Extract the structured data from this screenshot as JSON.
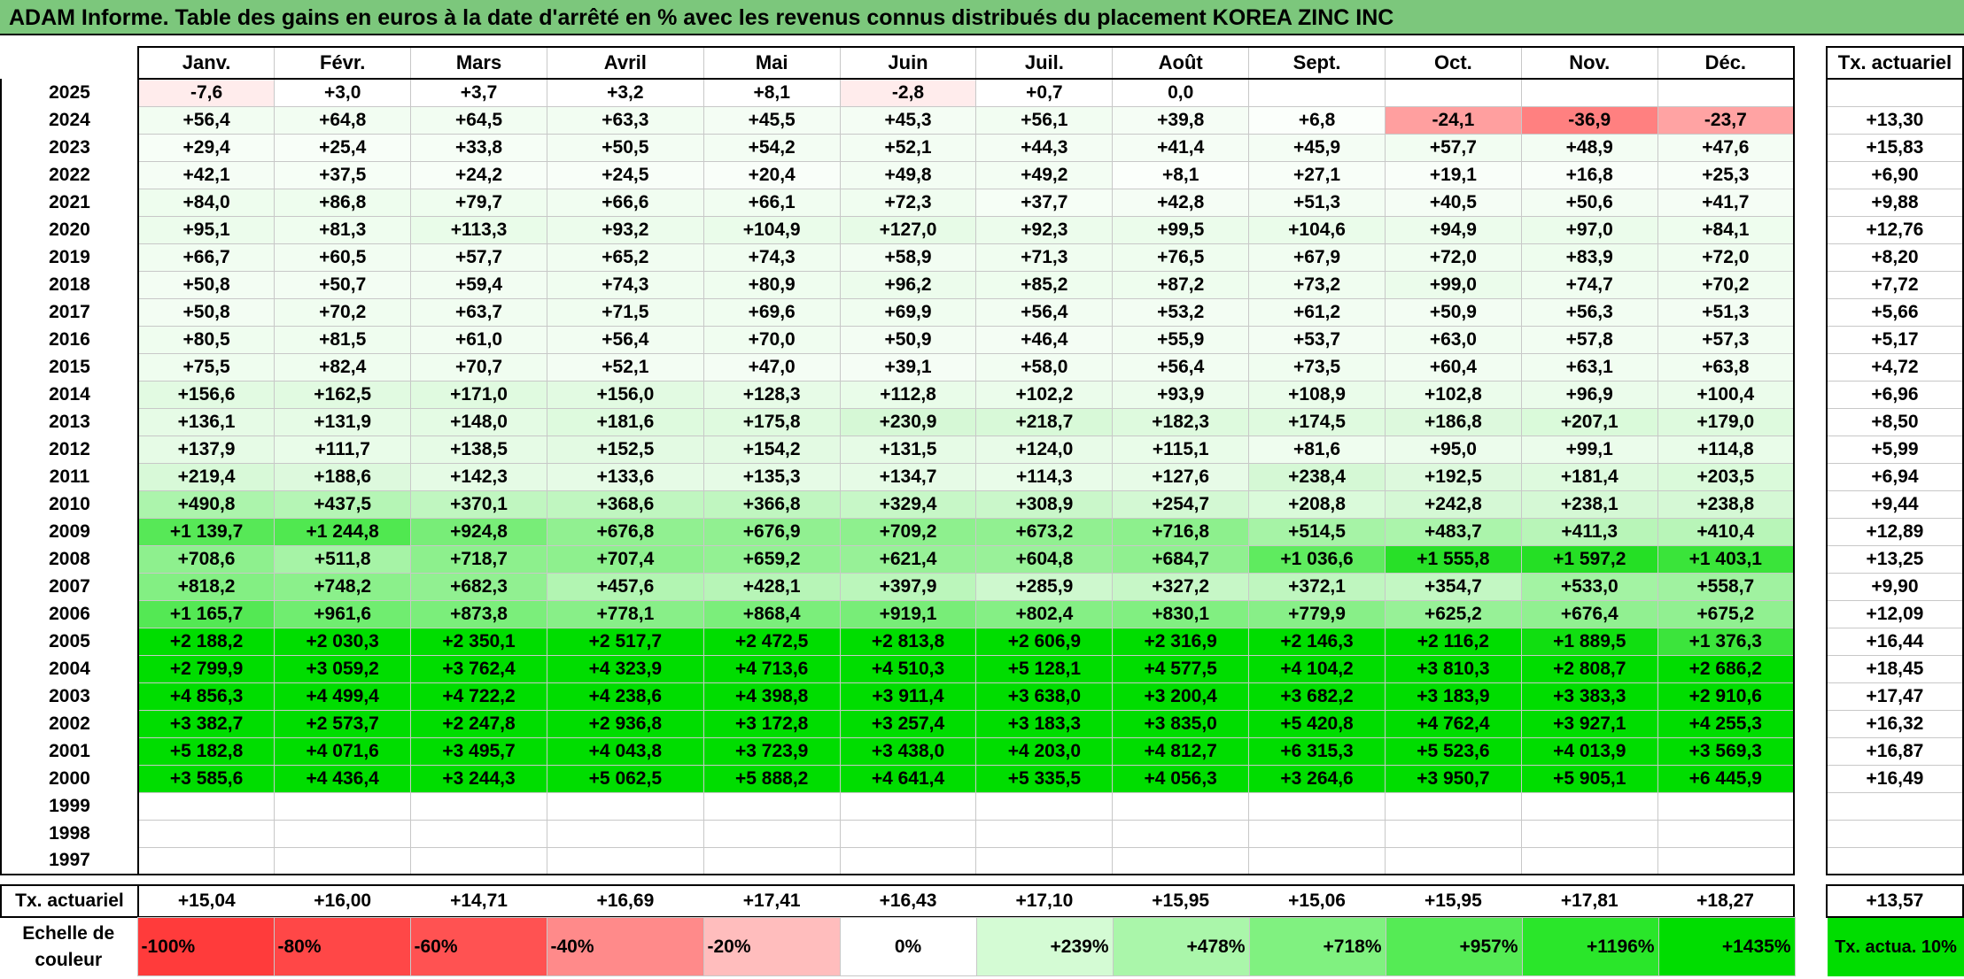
{
  "title": "ADAM Informe. Table des gains en euros à la date d'arrêté en % avec les revenus connus distribués du placement KOREA ZINC INC",
  "months": [
    "Janv.",
    "Févr.",
    "Mars",
    "Avril",
    "Mai",
    "Juin",
    "Juil.",
    "Août",
    "Sept.",
    "Oct.",
    "Nov.",
    "Déc."
  ],
  "actuarial_header": "Tx. actuariel",
  "rows": [
    {
      "year": "2025",
      "values": [
        "-7,6",
        "+3,0",
        "+3,7",
        "+3,2",
        "+8,1",
        "-2,8",
        "+0,7",
        "0,0",
        "",
        "",
        "",
        ""
      ],
      "colors": [
        "#ffecec",
        "#ffffff",
        "#ffffff",
        "#ffffff",
        "#ffffff",
        "#ffecec",
        "#ffffff",
        "#ffffff",
        "#ffffff",
        "#ffffff",
        "#ffffff",
        "#ffffff"
      ],
      "rate": ""
    },
    {
      "year": "2024",
      "values": [
        "+56,4",
        "+64,8",
        "+64,5",
        "+63,3",
        "+45,5",
        "+45,3",
        "+56,1",
        "+39,8",
        "+6,8",
        "-24,1",
        "-36,9",
        "-23,7"
      ],
      "colors": [
        "#f2fdf2",
        "#f2fdf2",
        "#f2fdf2",
        "#f2fdf2",
        "#f4fdf4",
        "#f4fdf4",
        "#f2fdf2",
        "#f5fdf5",
        "#fbfffb",
        "#ff9f9f",
        "#ff8080",
        "#ffa3a3"
      ],
      "rate": "+13,30"
    },
    {
      "year": "2023",
      "values": [
        "+29,4",
        "+25,4",
        "+33,8",
        "+50,5",
        "+54,2",
        "+52,1",
        "+44,3",
        "+41,4",
        "+45,9",
        "+57,7",
        "+48,9",
        "+47,6"
      ],
      "colors": [
        "#f7fef7",
        "#f8fef8",
        "#f6fef6",
        "#f3fdf3",
        "#f3fdf3",
        "#f3fdf3",
        "#f4fdf4",
        "#f5fdf5",
        "#f4fdf4",
        "#f2fdf2",
        "#f3fdf3",
        "#f4fdf4"
      ],
      "rate": "+15,83"
    },
    {
      "year": "2022",
      "values": [
        "+42,1",
        "+37,5",
        "+24,2",
        "+24,5",
        "+20,4",
        "+49,8",
        "+49,2",
        "+8,1",
        "+27,1",
        "+19,1",
        "+16,8",
        "+25,3"
      ],
      "colors": [
        "#f5fdf5",
        "#f6fef6",
        "#f8fef8",
        "#f8fef8",
        "#f9fef9",
        "#f3fdf3",
        "#f3fdf3",
        "#fbfffb",
        "#f8fef8",
        "#f9fef9",
        "#f9fef9",
        "#f8fef8"
      ],
      "rate": "+6,90"
    },
    {
      "year": "2021",
      "values": [
        "+84,0",
        "+86,8",
        "+79,7",
        "+66,6",
        "+66,1",
        "+72,3",
        "+37,7",
        "+42,8",
        "+51,3",
        "+40,5",
        "+50,6",
        "+41,7"
      ],
      "colors": [
        "#eefdee",
        "#eefdee",
        "#effdef",
        "#f1fdf1",
        "#f1fdf1",
        "#f0fdf0",
        "#f6fef6",
        "#f5fdf5",
        "#f3fdf3",
        "#f5fdf5",
        "#f3fdf3",
        "#f5fdf5"
      ],
      "rate": "+9,88"
    },
    {
      "year": "2020",
      "values": [
        "+95,1",
        "+81,3",
        "+113,3",
        "+93,2",
        "+104,9",
        "+127,0",
        "+92,3",
        "+99,5",
        "+104,6",
        "+94,9",
        "+97,0",
        "+84,1"
      ],
      "colors": [
        "#ecfcec",
        "#effdef",
        "#e9fce9",
        "#ecfcec",
        "#eafcea",
        "#e7fbe7",
        "#ecfcec",
        "#ebfceb",
        "#eafcea",
        "#ecfcec",
        "#ebfceb",
        "#eefdee"
      ],
      "rate": "+12,76"
    },
    {
      "year": "2019",
      "values": [
        "+66,7",
        "+60,5",
        "+57,7",
        "+65,2",
        "+74,3",
        "+58,9",
        "+71,3",
        "+76,5",
        "+67,9",
        "+72,0",
        "+83,9",
        "+72,0"
      ],
      "colors": [
        "#f1fdf1",
        "#f2fdf2",
        "#f2fdf2",
        "#f1fdf1",
        "#f0fdf0",
        "#f2fdf2",
        "#f0fdf0",
        "#effdef",
        "#f1fdf1",
        "#f0fdf0",
        "#eefdee",
        "#f0fdf0"
      ],
      "rate": "+8,20"
    },
    {
      "year": "2018",
      "values": [
        "+50,8",
        "+50,7",
        "+59,4",
        "+74,3",
        "+80,9",
        "+96,2",
        "+85,2",
        "+87,2",
        "+73,2",
        "+99,0",
        "+74,7",
        "+70,2"
      ],
      "colors": [
        "#f3fdf3",
        "#f3fdf3",
        "#f2fdf2",
        "#f0fdf0",
        "#effdef",
        "#ecfcec",
        "#eefdee",
        "#eefdee",
        "#f0fdf0",
        "#ebfceb",
        "#f0fdf0",
        "#f0fdf0"
      ],
      "rate": "+7,72"
    },
    {
      "year": "2017",
      "values": [
        "+50,8",
        "+70,2",
        "+63,7",
        "+71,5",
        "+69,6",
        "+69,9",
        "+56,4",
        "+53,2",
        "+61,2",
        "+50,9",
        "+56,3",
        "+51,3"
      ],
      "colors": [
        "#f3fdf3",
        "#f0fdf0",
        "#f1fdf1",
        "#f0fdf0",
        "#f0fdf0",
        "#f0fdf0",
        "#f2fdf2",
        "#f3fdf3",
        "#f2fdf2",
        "#f3fdf3",
        "#f2fdf2",
        "#f3fdf3"
      ],
      "rate": "+5,66"
    },
    {
      "year": "2016",
      "values": [
        "+80,5",
        "+81,5",
        "+61,0",
        "+56,4",
        "+70,0",
        "+50,9",
        "+46,4",
        "+55,9",
        "+53,7",
        "+63,0",
        "+57,8",
        "+57,3"
      ],
      "colors": [
        "#effdef",
        "#effdef",
        "#f2fdf2",
        "#f2fdf2",
        "#f0fdf0",
        "#f3fdf3",
        "#f4fdf4",
        "#f2fdf2",
        "#f3fdf3",
        "#f1fdf1",
        "#f2fdf2",
        "#f2fdf2"
      ],
      "rate": "+5,17"
    },
    {
      "year": "2015",
      "values": [
        "+75,5",
        "+82,4",
        "+70,7",
        "+52,1",
        "+47,0",
        "+39,1",
        "+58,0",
        "+56,4",
        "+73,5",
        "+60,4",
        "+63,1",
        "+63,8"
      ],
      "colors": [
        "#effdef",
        "#effdef",
        "#f0fdf0",
        "#f3fdf3",
        "#f4fdf4",
        "#f5fdf5",
        "#f2fdf2",
        "#f2fdf2",
        "#f0fdf0",
        "#f2fdf2",
        "#f1fdf1",
        "#f1fdf1"
      ],
      "rate": "+4,72"
    },
    {
      "year": "2014",
      "values": [
        "+156,6",
        "+162,5",
        "+171,0",
        "+156,0",
        "+128,3",
        "+112,8",
        "+102,2",
        "+93,9",
        "+108,9",
        "+102,8",
        "+96,9",
        "+100,4"
      ],
      "colors": [
        "#e2fae2",
        "#e1fae1",
        "#e0fae0",
        "#e2fae2",
        "#e7fbe7",
        "#e9fce9",
        "#ebfceb",
        "#ecfcec",
        "#eafcea",
        "#ebfceb",
        "#ebfceb",
        "#ebfceb"
      ],
      "rate": "+6,96"
    },
    {
      "year": "2013",
      "values": [
        "+136,1",
        "+131,9",
        "+148,0",
        "+181,6",
        "+175,8",
        "+230,9",
        "+218,7",
        "+182,3",
        "+174,5",
        "+186,8",
        "+207,1",
        "+179,0"
      ],
      "colors": [
        "#e6fbe6",
        "#e6fbe6",
        "#e4fbe4",
        "#defade",
        "#dffadf",
        "#d6f8d6",
        "#d8f9d8",
        "#defade",
        "#dffadf",
        "#ddf9dd",
        "#dafada",
        "#defade"
      ],
      "rate": "+8,50"
    },
    {
      "year": "2012",
      "values": [
        "+137,9",
        "+111,7",
        "+138,5",
        "+152,5",
        "+154,2",
        "+131,5",
        "+124,0",
        "+115,1",
        "+81,6",
        "+95,0",
        "+99,1",
        "+114,8"
      ],
      "colors": [
        "#e6fbe6",
        "#e9fce9",
        "#e6fbe6",
        "#e3fae3",
        "#e3fae3",
        "#e6fbe6",
        "#e8fbe8",
        "#e9fce9",
        "#effdef",
        "#ecfcec",
        "#ebfceb",
        "#e9fce9"
      ],
      "rate": "+5,99"
    },
    {
      "year": "2011",
      "values": [
        "+219,4",
        "+188,6",
        "+142,3",
        "+133,6",
        "+135,3",
        "+134,7",
        "+114,3",
        "+127,6",
        "+238,4",
        "+192,5",
        "+181,4",
        "+203,5"
      ],
      "colors": [
        "#d8f9d8",
        "#ddf9dd",
        "#e5fbe5",
        "#e6fbe6",
        "#e6fbe6",
        "#e6fbe6",
        "#e9fce9",
        "#e7fbe7",
        "#d5f8d5",
        "#ddf9dd",
        "#defade",
        "#dafada"
      ],
      "rate": "+6,94"
    },
    {
      "year": "2010",
      "values": [
        "+490,8",
        "+437,5",
        "+370,1",
        "+368,6",
        "+366,8",
        "+329,4",
        "+308,9",
        "+254,7",
        "+208,8",
        "+242,8",
        "+238,1",
        "+238,8"
      ],
      "colors": [
        "#acf4ac",
        "#b5f5b5",
        "#c0f6c0",
        "#c0f6c0",
        "#c0f6c0",
        "#c7f7c7",
        "#caf7ca",
        "#d3f8d3",
        "#dafada",
        "#d5f8d5",
        "#d5f8d5",
        "#d5f8d5"
      ],
      "rate": "+9,44"
    },
    {
      "year": "2009",
      "values": [
        "+1 139,7",
        "+1 244,8",
        "+924,8",
        "+676,8",
        "+676,9",
        "+709,2",
        "+673,2",
        "+716,8",
        "+514,5",
        "+483,7",
        "+411,3",
        "+410,4"
      ],
      "colors": [
        "#57e857",
        "#50e850",
        "#78ed78",
        "#91f091",
        "#91f091",
        "#8ef08e",
        "#91f091",
        "#8df08d",
        "#a6f3a6",
        "#abf4ab",
        "#b8f5b8",
        "#b8f5b8"
      ],
      "rate": "+12,89"
    },
    {
      "year": "2008",
      "values": [
        "+708,6",
        "+511,8",
        "+718,7",
        "+707,4",
        "+659,2",
        "+621,4",
        "+604,8",
        "+684,7",
        "+1 036,6",
        "+1 555,8",
        "+1 597,2",
        "+1 403,1"
      ],
      "colors": [
        "#8ef08e",
        "#a6f3a6",
        "#8df08d",
        "#8ef08e",
        "#93f193",
        "#97f197",
        "#99f199",
        "#90f090",
        "#5feb5f",
        "#28e028",
        "#25df25",
        "#3ae43a"
      ],
      "rate": "+13,25"
    },
    {
      "year": "2007",
      "values": [
        "+818,2",
        "+748,2",
        "+682,3",
        "+457,6",
        "+428,1",
        "+397,9",
        "+285,9",
        "+327,2",
        "+372,1",
        "+354,7",
        "+533,0",
        "+558,7"
      ],
      "colors": [
        "#83ef83",
        "#8bf08b",
        "#91f091",
        "#b2f5b2",
        "#b7f5b7",
        "#bbf6bb",
        "#cef8ce",
        "#c7f7c7",
        "#bff6bf",
        "#c3f7c3",
        "#a3f3a3",
        "#a0f2a0"
      ],
      "rate": "+9,90"
    },
    {
      "year": "2006",
      "values": [
        "+1 165,7",
        "+961,6",
        "+873,8",
        "+778,1",
        "+868,4",
        "+919,1",
        "+802,4",
        "+830,1",
        "+779,9",
        "+625,2",
        "+676,4",
        "+675,2"
      ],
      "colors": [
        "#54e854",
        "#70ed70",
        "#7bee7b",
        "#88ef88",
        "#7bee7b",
        "#78ed78",
        "#85ef85",
        "#81ef81",
        "#88ef88",
        "#97f197",
        "#91f091",
        "#91f091"
      ],
      "rate": "+12,09"
    },
    {
      "year": "2005",
      "values": [
        "+2 188,2",
        "+2 030,3",
        "+2 350,1",
        "+2 517,7",
        "+2 472,5",
        "+2 813,8",
        "+2 606,9",
        "+2 316,9",
        "+2 146,3",
        "+2 116,2",
        "+1 889,5",
        "+1 376,3"
      ],
      "colors": [
        "#00dd00",
        "#00dd00",
        "#00dd00",
        "#00dd00",
        "#00dd00",
        "#00dd00",
        "#00dd00",
        "#00dd00",
        "#00dd00",
        "#00dd00",
        "#11de11",
        "#3ce43c"
      ],
      "rate": "+16,44"
    },
    {
      "year": "2004",
      "values": [
        "+2 799,9",
        "+3 059,2",
        "+3 762,4",
        "+4 323,9",
        "+4 713,6",
        "+4 510,3",
        "+5 128,1",
        "+4 577,5",
        "+4 104,2",
        "+3 810,3",
        "+2 808,7",
        "+2 686,2"
      ],
      "colors": [
        "#00dd00",
        "#00dd00",
        "#00dd00",
        "#00dd00",
        "#00dd00",
        "#00dd00",
        "#00dd00",
        "#00dd00",
        "#00dd00",
        "#00dd00",
        "#00dd00",
        "#00dd00"
      ],
      "rate": "+18,45"
    },
    {
      "year": "2003",
      "values": [
        "+4 856,3",
        "+4 499,4",
        "+4 722,2",
        "+4 238,6",
        "+4 398,8",
        "+3 911,4",
        "+3 638,0",
        "+3 200,4",
        "+3 682,2",
        "+3 183,9",
        "+3 383,3",
        "+2 910,6"
      ],
      "colors": [
        "#00dd00",
        "#00dd00",
        "#00dd00",
        "#00dd00",
        "#00dd00",
        "#00dd00",
        "#00dd00",
        "#00dd00",
        "#00dd00",
        "#00dd00",
        "#00dd00",
        "#00dd00"
      ],
      "rate": "+17,47"
    },
    {
      "year": "2002",
      "values": [
        "+3 382,7",
        "+2 573,7",
        "+2 247,8",
        "+2 936,8",
        "+3 172,8",
        "+3 257,4",
        "+3 183,3",
        "+3 835,0",
        "+5 420,8",
        "+4 762,4",
        "+3 927,1",
        "+4 255,3"
      ],
      "colors": [
        "#00dd00",
        "#00dd00",
        "#00dd00",
        "#00dd00",
        "#00dd00",
        "#00dd00",
        "#00dd00",
        "#00dd00",
        "#00dd00",
        "#00dd00",
        "#00dd00",
        "#00dd00"
      ],
      "rate": "+16,32"
    },
    {
      "year": "2001",
      "values": [
        "+5 182,8",
        "+4 071,6",
        "+3 495,7",
        "+4 043,8",
        "+3 723,9",
        "+3 438,0",
        "+4 203,0",
        "+4 812,7",
        "+6 315,3",
        "+5 523,6",
        "+4 013,9",
        "+3 569,3"
      ],
      "colors": [
        "#00dd00",
        "#00dd00",
        "#00dd00",
        "#00dd00",
        "#00dd00",
        "#00dd00",
        "#00dd00",
        "#00dd00",
        "#00dd00",
        "#00dd00",
        "#00dd00",
        "#00dd00"
      ],
      "rate": "+16,87"
    },
    {
      "year": "2000",
      "values": [
        "+3 585,6",
        "+4 436,4",
        "+3 244,3",
        "+5 062,5",
        "+5 888,2",
        "+4 641,4",
        "+5 335,5",
        "+4 056,3",
        "+3 264,6",
        "+3 950,7",
        "+5 905,1",
        "+6 445,9"
      ],
      "colors": [
        "#00dd00",
        "#00dd00",
        "#00dd00",
        "#00dd00",
        "#00dd00",
        "#00dd00",
        "#00dd00",
        "#00dd00",
        "#00dd00",
        "#00dd00",
        "#00dd00",
        "#00dd00"
      ],
      "rate": "+16,49"
    },
    {
      "year": "1999",
      "values": [
        "",
        "",
        "",
        "",
        "",
        "",
        "",
        "",
        "",
        "",
        "",
        ""
      ],
      "colors": [
        "#ffffff",
        "#ffffff",
        "#ffffff",
        "#ffffff",
        "#ffffff",
        "#ffffff",
        "#ffffff",
        "#ffffff",
        "#ffffff",
        "#ffffff",
        "#ffffff",
        "#ffffff"
      ],
      "rate": ""
    },
    {
      "year": "1998",
      "values": [
        "",
        "",
        "",
        "",
        "",
        "",
        "",
        "",
        "",
        "",
        "",
        ""
      ],
      "colors": [
        "#ffffff",
        "#ffffff",
        "#ffffff",
        "#ffffff",
        "#ffffff",
        "#ffffff",
        "#ffffff",
        "#ffffff",
        "#ffffff",
        "#ffffff",
        "#ffffff",
        "#ffffff"
      ],
      "rate": ""
    },
    {
      "year": "1997",
      "values": [
        "",
        "",
        "",
        "",
        "",
        "",
        "",
        "",
        "",
        "",
        "",
        ""
      ],
      "colors": [
        "#ffffff",
        "#ffffff",
        "#ffffff",
        "#ffffff",
        "#ffffff",
        "#ffffff",
        "#ffffff",
        "#ffffff",
        "#ffffff",
        "#ffffff",
        "#ffffff",
        "#ffffff"
      ],
      "rate": ""
    }
  ],
  "totals": {
    "label": "Tx. actuariel",
    "values": [
      "+15,04",
      "+16,00",
      "+14,71",
      "+16,69",
      "+17,41",
      "+16,43",
      "+17,10",
      "+15,95",
      "+15,06",
      "+15,95",
      "+17,81",
      "+18,27"
    ],
    "overall": "+13,57"
  },
  "scale": {
    "label": "Echelle de couleur",
    "items": [
      {
        "text": "-100%",
        "color": "#ff3b3b",
        "align": "left"
      },
      {
        "text": "-80%",
        "color": "#ff4747",
        "align": "left"
      },
      {
        "text": "-60%",
        "color": "#ff5252",
        "align": "left"
      },
      {
        "text": "-40%",
        "color": "#ff8a8a",
        "align": "left"
      },
      {
        "text": "-20%",
        "color": "#ffbdbd",
        "align": "left"
      },
      {
        "text": "0%",
        "color": "#ffffff",
        "align": "center"
      },
      {
        "text": "+239%",
        "color": "#d4fbd4",
        "align": "right"
      },
      {
        "text": "+478%",
        "color": "#aaf6aa",
        "align": "right"
      },
      {
        "text": "+718%",
        "color": "#80f180",
        "align": "right"
      },
      {
        "text": "+957%",
        "color": "#55eb55",
        "align": "right"
      },
      {
        "text": "+1196%",
        "color": "#2ae62a",
        "align": "right"
      },
      {
        "text": "+1435%",
        "color": "#00dd00",
        "align": "right"
      }
    ],
    "legend_text": "Tx. actua. 10%",
    "legend_color": "#00dd00"
  }
}
